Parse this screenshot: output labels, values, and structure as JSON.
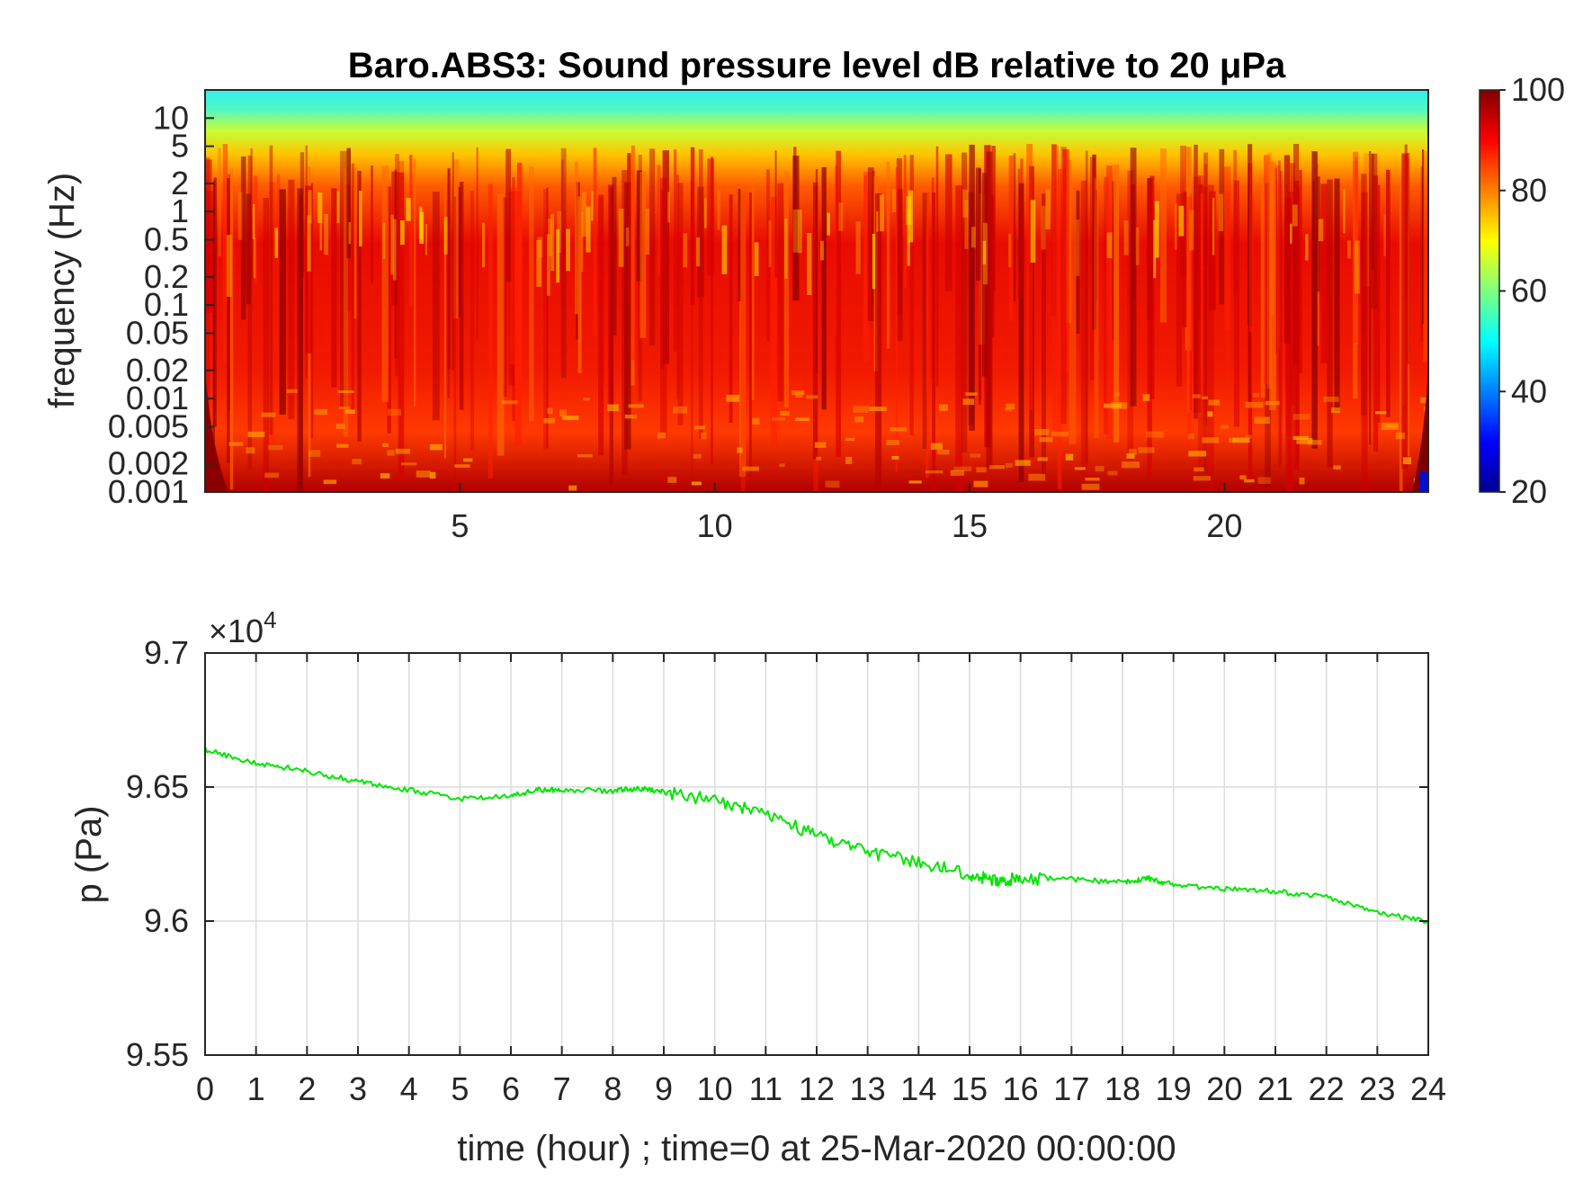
{
  "chart_data": [
    {
      "type": "heatmap",
      "title": "Baro.ABS3: Sound pressure level dB relative to 20 μPa",
      "xlabel": "",
      "ylabel": "frequency (Hz)",
      "xlim": [
        0,
        24
      ],
      "y_scale": "log",
      "ylim": [
        0.001,
        20
      ],
      "x_ticks": [
        5,
        10,
        15,
        20
      ],
      "y_ticks": [
        0.001,
        0.002,
        0.005,
        0.01,
        0.02,
        0.05,
        0.1,
        0.2,
        0.5,
        1,
        2,
        5,
        10
      ],
      "y_tick_labels": [
        "0.001",
        "0.002",
        "0.005",
        "0.01",
        "0.02",
        "0.05",
        "0.1",
        "0.2",
        "0.5",
        "1",
        "2",
        "5",
        "10"
      ],
      "colorbar": {
        "range": [
          20,
          100
        ],
        "ticks": [
          20,
          40,
          60,
          80,
          100
        ],
        "colormap": "jet",
        "placement": "right"
      },
      "approx_levels_db": {
        "above_10Hz": 50,
        "1_to_5Hz": 70,
        "0.01_to_1Hz": 88,
        "below_0.005Hz": 92
      }
    },
    {
      "type": "line",
      "title": "",
      "xlabel": "time (hour) ; time=0 at 25-Mar-2020 00:00:00",
      "ylabel": "p (Pa)",
      "xlim": [
        0,
        24
      ],
      "ylim": [
        95500,
        97000
      ],
      "x_ticks": [
        0,
        1,
        2,
        3,
        4,
        5,
        6,
        7,
        8,
        9,
        10,
        11,
        12,
        13,
        14,
        15,
        16,
        17,
        18,
        19,
        20,
        21,
        22,
        23,
        24
      ],
      "y_ticks": [
        95500,
        96000,
        96500,
        97000
      ],
      "y_tick_labels": [
        "9.55",
        "9.6",
        "9.65",
        "9.7"
      ],
      "y_multiplier": "×10",
      "y_multiplier_exp": "4",
      "grid": true,
      "series": [
        {
          "color": "#00e600",
          "x": [
            0,
            1,
            2,
            3,
            4,
            5,
            6,
            6.5,
            7,
            8,
            8.5,
            9,
            10,
            11,
            12,
            13,
            14,
            15,
            15.5,
            16,
            17,
            18,
            18.5,
            19,
            20,
            21,
            22,
            23,
            24
          ],
          "y": [
            96640,
            96590,
            96560,
            96520,
            96490,
            96455,
            96465,
            96490,
            96490,
            96485,
            96495,
            96480,
            96450,
            96400,
            96320,
            96255,
            96220,
            96175,
            96150,
            96160,
            96155,
            96145,
            96160,
            96135,
            96120,
            96110,
            96090,
            96030,
            96000
          ]
        }
      ]
    }
  ]
}
